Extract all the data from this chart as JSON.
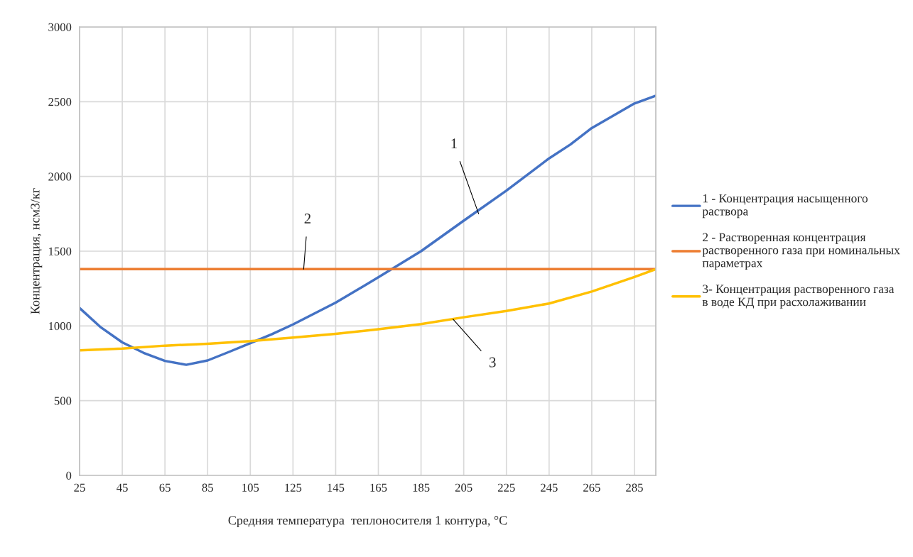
{
  "chart_data": {
    "type": "line",
    "xlabel": "Средняя температура  теплоносителя 1 контура, °C",
    "ylabel": "Концентрация, нсм3/кг",
    "series": [
      {
        "name": "1 - Концентрация насыщенного раствора",
        "color": "#4472c4",
        "x": [
          25,
          35,
          45,
          55,
          65,
          75,
          85,
          95,
          105,
          115,
          125,
          145,
          165,
          185,
          205,
          225,
          245,
          255,
          265,
          285,
          295
        ],
        "values": [
          1120,
          990,
          890,
          820,
          766,
          740,
          769,
          826,
          885,
          944,
          1010,
          1156,
          1325,
          1500,
          1704,
          1905,
          2121,
          2214,
          2324,
          2488,
          2540
        ]
      },
      {
        "name": "2 - Растворенная концентрация растворенного газа при номинальных параметрах",
        "color": "#ed7d31",
        "x": [
          25,
          295
        ],
        "values": [
          1380,
          1380
        ]
      },
      {
        "name": "3- Концентрация растворенного газа в воде КД при расхолаживании",
        "color": "#ffc000",
        "x": [
          25,
          45,
          65,
          85,
          105,
          125,
          145,
          165,
          185,
          205,
          225,
          245,
          265,
          285,
          295
        ],
        "values": [
          837,
          848,
          868,
          881,
          898,
          922,
          947,
          978,
          1012,
          1058,
          1100,
          1150,
          1230,
          1327,
          1380
        ]
      }
    ],
    "annotations": [
      {
        "text": "1",
        "x": 212,
        "y": 1750
      },
      {
        "text": "2",
        "x": 130,
        "y": 1380
      },
      {
        "text": "3",
        "x": 200,
        "y": 1045
      }
    ],
    "xlim": [
      25,
      295
    ],
    "xticks": [
      25,
      45,
      65,
      85,
      105,
      125,
      145,
      165,
      185,
      205,
      225,
      245,
      265,
      285
    ],
    "ylim": [
      0,
      3000
    ],
    "yticks": [
      0,
      500,
      1000,
      1500,
      2000,
      2500,
      3000
    ],
    "grid": true,
    "legend": "right",
    "line_style": "solid",
    "marker": "none"
  }
}
